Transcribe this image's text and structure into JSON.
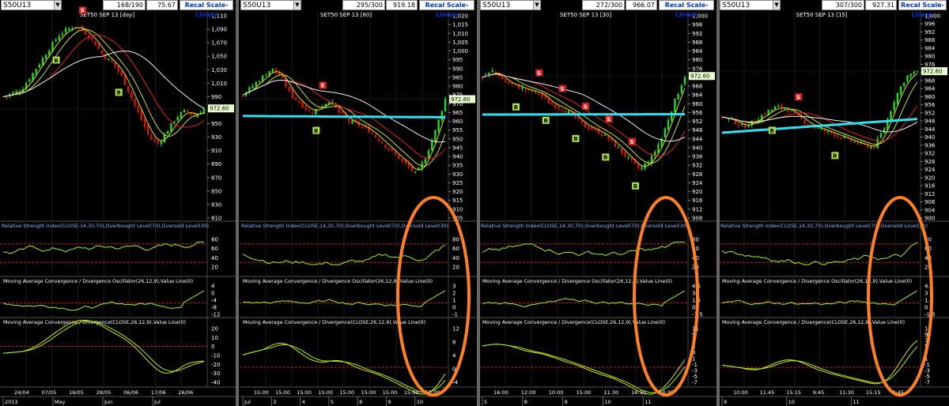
{
  "colors": {
    "accent_orange": "#ff7f24",
    "price_tag_bg": "#e8ffd0",
    "buy_marker": "#a8e040",
    "sell_marker": "#e02020",
    "bull": "#22dd22",
    "bear": "#e01010",
    "ma_cyan": "#30e0f0"
  },
  "current_price": "972.60",
  "panels": [
    {
      "symbol": "S50U13",
      "counter": "168/190",
      "price": "75.67",
      "recal": "Recal Scale-Linear",
      "title": "SET50 SEP 13   [day]",
      "main_ticks": [
        "1,110",
        "1,090",
        "1,070",
        "1,050",
        "1,030",
        "1,010",
        "990",
        "970",
        "950",
        "930",
        "910",
        "890",
        "870",
        "850",
        "830",
        "810"
      ],
      "rsi_ticks": [
        "80",
        "60",
        "40",
        "20"
      ],
      "osc_ticks": [
        "4",
        "0",
        "-4",
        "-8",
        "-12"
      ],
      "macd_ticks": [
        "20",
        "10",
        "0",
        "-10",
        "-20",
        "-30",
        "-40"
      ],
      "dates_top": [
        "24/04",
        "07/05",
        "16/05",
        "28/05",
        "06/06",
        "17/06",
        "26/06"
      ],
      "dates_bottom": [
        "2013",
        "May",
        "Jun",
        "Jul"
      ]
    },
    {
      "symbol": "S50U13",
      "counter": "295/300",
      "price": "919.18",
      "recal": "Recal Scale-Linear",
      "title": "SET50 SEP 13   [60]",
      "main_ticks": [
        "1,020",
        "1,015",
        "1,010",
        "1,005",
        "1,000",
        "995",
        "990",
        "985",
        "980",
        "975",
        "970",
        "965",
        "960",
        "955",
        "950",
        "945",
        "940",
        "935",
        "930",
        "925",
        "920",
        "915",
        "910",
        "905"
      ],
      "rsi_ticks": [
        "80",
        "60",
        "40",
        "20"
      ],
      "osc_ticks": [
        "3",
        "2",
        "1",
        "0",
        "-1"
      ],
      "macd_ticks": [
        "12",
        "8",
        "4",
        "0",
        "-4"
      ],
      "dates_top": [
        "15:00",
        "15:00",
        "15:00",
        "15:00",
        "15:00",
        "15:00",
        "15:00",
        "15:00",
        "15:00"
      ],
      "dates_bottom": [
        "Jul",
        "3",
        "4",
        "5",
        "8",
        "9",
        "10"
      ]
    },
    {
      "symbol": "S50U13",
      "counter": "272/300",
      "price": "966.07",
      "recal": "Recal Scale-Linear",
      "title": "SET50 SEP 13   [30]",
      "main_ticks": [
        "1,000",
        "996",
        "992",
        "988",
        "984",
        "980",
        "976",
        "972",
        "968",
        "964",
        "960",
        "956",
        "952",
        "948",
        "944",
        "940",
        "936",
        "932",
        "928",
        "924",
        "920",
        "916",
        "912",
        "908"
      ],
      "rsi_ticks": [
        "80",
        "60",
        "40",
        "20"
      ],
      "osc_ticks": [
        "4.5",
        "3",
        "1.5",
        "0",
        "-1.5"
      ],
      "macd_ticks": [
        "11",
        "9",
        "7",
        "5",
        "3",
        "1",
        "-1",
        "-3",
        "-5",
        "-7"
      ],
      "dates_top": [
        "16:00",
        "12:00",
        "10:00",
        "15:00",
        "11:30",
        "16:30",
        "14:30"
      ],
      "dates_bottom": [
        "5",
        "8",
        "9",
        "10",
        "11"
      ]
    },
    {
      "symbol": "S50U13",
      "counter": "307/300",
      "price": "927.31",
      "recal": "Recal Scale-Linear",
      "title": "SET50 SEP 13   [15]",
      "main_ticks": [
        "1,000",
        "996",
        "992",
        "988",
        "984",
        "980",
        "976",
        "972",
        "968",
        "964",
        "960",
        "956",
        "952",
        "948",
        "944",
        "940",
        "936",
        "932",
        "928",
        "924",
        "920",
        "916",
        "912",
        "908",
        "904",
        "900"
      ],
      "rsi_ticks": [
        "80",
        "60",
        "40",
        "20"
      ],
      "osc_ticks": [
        "4.5",
        "3",
        "1.5",
        "0",
        "-1.5"
      ],
      "macd_ticks": [
        "11",
        "9",
        "7",
        "5",
        "3",
        "1",
        "-1",
        "-3",
        "-5",
        "-7"
      ],
      "dates_top": [
        "10:00",
        "11:45",
        "15:15",
        "9:45",
        "11:30",
        "15:15",
        "9:45"
      ],
      "dates_bottom": [
        "9",
        "10",
        "11"
      ]
    }
  ],
  "indicator_titles": {
    "rsi": "Relative Strength Index(CLOSE,14,30,70),Overbought Level(70),Oversold Level(30)",
    "osc": "Moving Average Convergence / Divergence Oscillator(26,12,9),Value Line(0)",
    "macd": "Moving Average Convergence / Divergence(CLOSE,26,12,9),Value Line(0)"
  },
  "markers": {
    "buy": "B",
    "sell": "S"
  },
  "chart_data": [
    {
      "type": "candlestick",
      "timeframe": "day",
      "title": "SET50 SEP 13 [day]",
      "ylim": [
        810,
        1110
      ],
      "approx_close": [
        990,
        995,
        1000,
        1020,
        1040,
        1060,
        1080,
        1090,
        1095,
        1085,
        1070,
        1050,
        1040,
        1020,
        990,
        960,
        930,
        920,
        940,
        960,
        970,
        960,
        972.6
      ],
      "buy_signals": 2,
      "sell_signals": 1
    },
    {
      "type": "candlestick",
      "timeframe": "60",
      "title": "SET50 SEP 13 [60]",
      "ylim": [
        905,
        1020
      ],
      "approx_close": [
        975,
        980,
        985,
        990,
        985,
        975,
        970,
        965,
        968,
        972,
        965,
        960,
        958,
        955,
        950,
        945,
        940,
        935,
        930,
        940,
        955,
        972.6
      ],
      "buy_signals": 1,
      "sell_signals": 1
    },
    {
      "type": "candlestick",
      "timeframe": "30",
      "title": "SET50 SEP 13 [30]",
      "ylim": [
        908,
        1000
      ],
      "approx_close": [
        972,
        975,
        970,
        968,
        966,
        965,
        960,
        958,
        955,
        950,
        948,
        945,
        940,
        935,
        930,
        935,
        945,
        960,
        972.6
      ],
      "buy_signals": 5,
      "sell_signals": 5
    },
    {
      "type": "candlestick",
      "timeframe": "15",
      "title": "SET50 SEP 13 [15]",
      "ylim": [
        900,
        1000
      ],
      "approx_close": [
        950,
        948,
        945,
        948,
        952,
        955,
        954,
        950,
        946,
        944,
        942,
        940,
        938,
        936,
        935,
        945,
        960,
        970,
        972.6
      ],
      "buy_signals": 2,
      "sell_signals": 1
    }
  ]
}
